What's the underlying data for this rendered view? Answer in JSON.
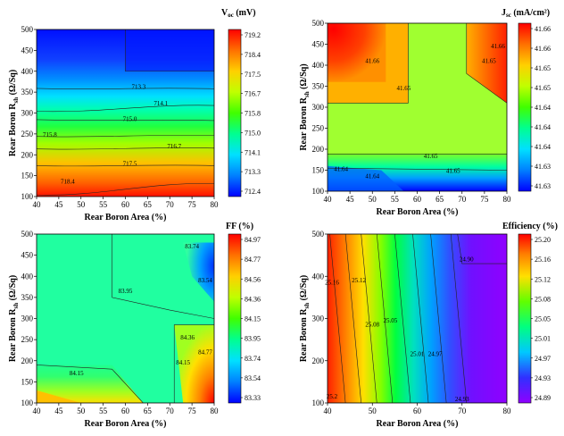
{
  "chart_data": [
    {
      "type": "heatmap",
      "title": "V",
      "title_sub": "oc",
      "title_unit": " (mV)",
      "xlabel": "Rear Boron Area (%)",
      "ylabel_main": "Rear Boron R",
      "ylabel_sub": "sh",
      "ylabel_unit": " (Ω/Sq)",
      "xlim": [
        40,
        80
      ],
      "ylim": [
        100,
        500
      ],
      "xticks": [
        40,
        45,
        50,
        55,
        60,
        65,
        70,
        75,
        80
      ],
      "yticks": [
        100,
        150,
        200,
        250,
        300,
        350,
        400,
        450,
        500
      ],
      "colorbar": {
        "ticks": [
          "719.2",
          "718.4",
          "717.5",
          "716.7",
          "715.8",
          "715.0",
          "714.1",
          "713.3",
          "712.4"
        ],
        "min": 712.4,
        "max": 719.2
      },
      "contour_labels": [
        {
          "text": "713.3",
          "x": 63,
          "y": 362
        },
        {
          "text": "714.1",
          "x": 68,
          "y": 322
        },
        {
          "text": "715.0",
          "x": 61,
          "y": 285
        },
        {
          "text": "715.8",
          "x": 43,
          "y": 248
        },
        {
          "text": "716.7",
          "x": 71,
          "y": 220
        },
        {
          "text": "717.5",
          "x": 61,
          "y": 178
        },
        {
          "text": "718.4",
          "x": 47,
          "y": 135
        }
      ]
    },
    {
      "type": "heatmap",
      "title": "J",
      "title_sub": "sc",
      "title_unit": " (mA/cm²)",
      "xlabel": "Rear Boron Area (%)",
      "ylabel_main": "Rear Boron R",
      "ylabel_sub": "sh",
      "ylabel_unit": " (Ω/Sq)",
      "xlim": [
        40,
        80
      ],
      "ylim": [
        100,
        500
      ],
      "xticks": [
        40,
        45,
        50,
        55,
        60,
        65,
        70,
        75,
        80
      ],
      "yticks": [
        100,
        150,
        200,
        250,
        300,
        350,
        400,
        450,
        500
      ],
      "colorbar": {
        "ticks": [
          "41.66",
          "41.66",
          "41.65",
          "41.65",
          "41.64",
          "41.64",
          "41.64",
          "41.63",
          "41.63"
        ],
        "min": 41.63,
        "max": 41.66
      },
      "contour_labels": [
        {
          "text": "41.66",
          "x": 50,
          "y": 410
        },
        {
          "text": "41.66",
          "x": 78,
          "y": 445
        },
        {
          "text": "41.65",
          "x": 76,
          "y": 410
        },
        {
          "text": "41.65",
          "x": 57,
          "y": 345
        },
        {
          "text": "41.65",
          "x": 63,
          "y": 183
        },
        {
          "text": "41.64",
          "x": 43,
          "y": 152
        },
        {
          "text": "41.64",
          "x": 50,
          "y": 135
        },
        {
          "text": "41.65",
          "x": 68,
          "y": 148
        }
      ]
    },
    {
      "type": "heatmap",
      "title": "FF",
      "title_sub": "",
      "title_unit": " (%)",
      "xlabel": "Rear Boron Area (%)",
      "ylabel_main": "Rear Boron R",
      "ylabel_sub": "sh",
      "ylabel_unit": " (Ω/Sq)",
      "xlim": [
        40,
        80
      ],
      "ylim": [
        100,
        500
      ],
      "xticks": [
        40,
        45,
        50,
        55,
        60,
        65,
        70,
        75,
        80
      ],
      "yticks": [
        100,
        150,
        200,
        250,
        300,
        350,
        400,
        450,
        500
      ],
      "colorbar": {
        "ticks": [
          "84.97",
          "84.77",
          "84.56",
          "84.36",
          "84.15",
          "83.95",
          "83.74",
          "83.54",
          "83.33"
        ],
        "min": 83.33,
        "max": 84.97
      },
      "contour_labels": [
        {
          "text": "83.74",
          "x": 75,
          "y": 470
        },
        {
          "text": "83.54",
          "x": 78,
          "y": 390
        },
        {
          "text": "83.95",
          "x": 60,
          "y": 365
        },
        {
          "text": "84.36",
          "x": 74,
          "y": 255
        },
        {
          "text": "84.77",
          "x": 78,
          "y": 220
        },
        {
          "text": "84.15",
          "x": 73,
          "y": 195
        },
        {
          "text": "84.15",
          "x": 49,
          "y": 170
        }
      ]
    },
    {
      "type": "heatmap",
      "title": "Efficiency",
      "title_sub": "",
      "title_unit": " (%)",
      "xlabel": "Rear Boron Area (%)",
      "ylabel_main": "Rear Boron R",
      "ylabel_sub": "sh",
      "ylabel_unit": " (Ω/Sq)",
      "xlim": [
        40,
        80
      ],
      "ylim": [
        100,
        500
      ],
      "xticks": [
        40,
        50,
        60,
        70,
        80
      ],
      "yticks": [
        100,
        200,
        300,
        400,
        500
      ],
      "colorbar": {
        "ticks": [
          "25.20",
          "25.16",
          "25.12",
          "25.08",
          "25.05",
          "25.01",
          "24.97",
          "24.93",
          "24.89"
        ],
        "min": 24.89,
        "max": 25.2
      },
      "contour_labels": [
        {
          "text": "25.16",
          "x": 41,
          "y": 385
        },
        {
          "text": "25.12",
          "x": 47,
          "y": 390
        },
        {
          "text": "24.90",
          "x": 71,
          "y": 440
        },
        {
          "text": "25.08",
          "x": 50,
          "y": 285
        },
        {
          "text": "25.05",
          "x": 54,
          "y": 295
        },
        {
          "text": "25.01",
          "x": 60,
          "y": 215
        },
        {
          "text": "24.97",
          "x": 64,
          "y": 215
        },
        {
          "text": "25.2",
          "x": 41,
          "y": 115
        },
        {
          "text": "24.93",
          "x": 70,
          "y": 108
        }
      ]
    }
  ]
}
